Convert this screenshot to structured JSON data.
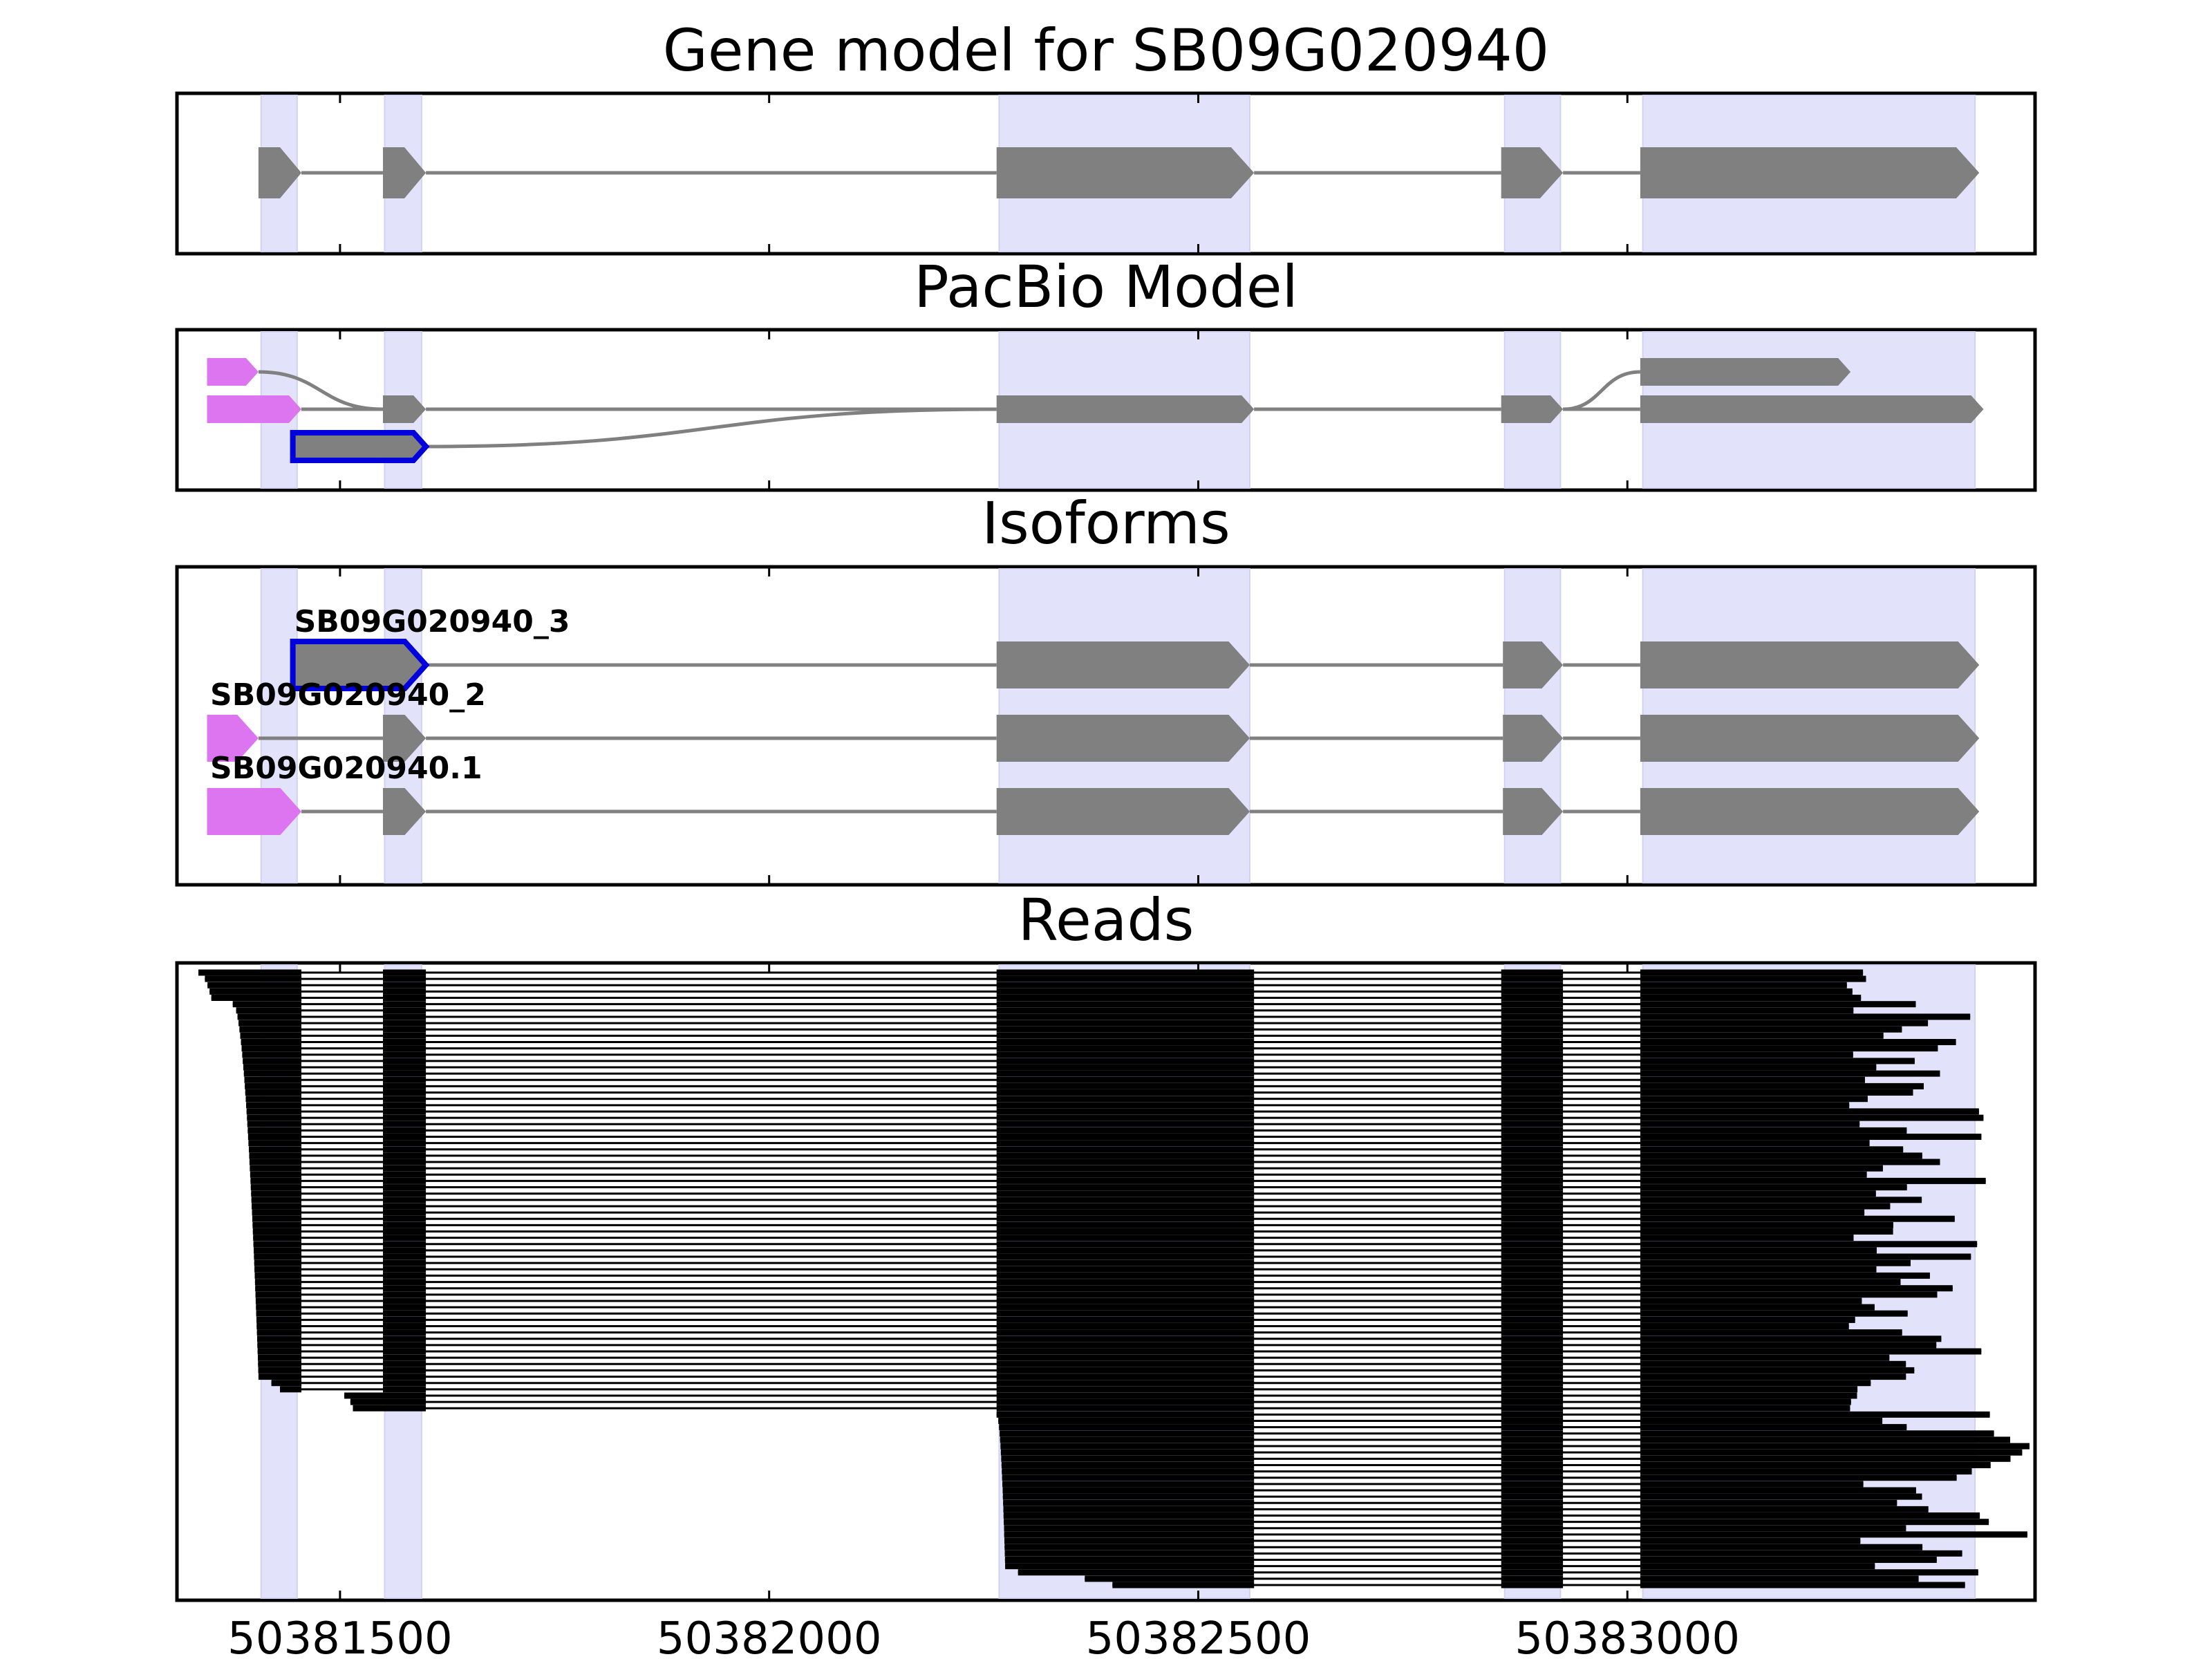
{
  "colors": {
    "exon": "#808080",
    "utr": "#dd75f0",
    "highlight_outline": "#0000dd",
    "exon_shading": "#e2e2fb",
    "read": "#000000"
  },
  "x_axis": {
    "domain": [
      50381310,
      50383475
    ],
    "ticks": [
      50381500,
      50382000,
      50382500,
      50383000
    ],
    "tick_labels": [
      "50381500",
      "50382000",
      "50382500",
      "50383000"
    ]
  },
  "shaded_exons": [
    [
      50381408,
      50381450
    ],
    [
      50381552,
      50381595
    ],
    [
      50382268,
      50382560
    ],
    [
      50382857,
      50382922
    ],
    [
      50383018,
      50383405
    ]
  ],
  "panels": [
    {
      "id": "gene-model",
      "title": "Gene model for SB09G020940",
      "tracks": [
        {
          "exons": [
            [
              50381405,
              50381455
            ],
            [
              50381550,
              50381600
            ],
            [
              50382265,
              50382565
            ],
            [
              50382853,
              50382925
            ],
            [
              50383015,
              50383410
            ]
          ]
        }
      ]
    },
    {
      "id": "pacbio-model",
      "title": "PacBio Model",
      "tracks": [
        {
          "utr": [
            [
              50381345,
              50381405
            ]
          ],
          "branch_to_track": 1,
          "branch_exon": 1
        },
        {
          "utr": [
            [
              50381345,
              50381455
            ]
          ],
          "exons": [
            [
              50381550,
              50381600
            ],
            [
              50382265,
              50382565
            ],
            [
              50382853,
              50382925
            ],
            [
              50383015,
              50383415
            ]
          ]
        },
        {
          "highlighted": true,
          "exons": [
            [
              50381445,
              50381600
            ]
          ],
          "branch_to_track": 1,
          "branch_exon": 2
        },
        {
          "exons": [
            [
              50383015,
              50383260
            ]
          ],
          "from_track": 1,
          "from_exon": 3
        }
      ]
    },
    {
      "id": "isoforms",
      "title": "Isoforms",
      "tracks": [
        {
          "label": "SB09G020940_3",
          "highlighted": true,
          "exons": [
            [
              50381445,
              50381600
            ],
            [
              50382265,
              50382560
            ],
            [
              50382855,
              50382925
            ],
            [
              50383015,
              50383410
            ]
          ]
        },
        {
          "label": "SB09G020940_2",
          "utr": [
            [
              50381345,
              50381405
            ]
          ],
          "exons": [
            [
              50381550,
              50381600
            ],
            [
              50382265,
              50382560
            ],
            [
              50382855,
              50382925
            ],
            [
              50383015,
              50383410
            ]
          ]
        },
        {
          "label": "SB09G020940.1",
          "utr": [
            [
              50381345,
              50381455
            ]
          ],
          "exons": [
            [
              50381550,
              50381600
            ],
            [
              50382265,
              50382560
            ],
            [
              50382855,
              50382925
            ],
            [
              50383015,
              50383410
            ]
          ]
        }
      ]
    },
    {
      "id": "reads",
      "title": "Reads",
      "read_groups": [
        {
          "count": 5,
          "first_start": [
            50381335,
            50381350
          ],
          "exon_ends": [
            50381455,
            50381600,
            50382565,
            50382925
          ],
          "end_range": [
            50383250,
            50383300
          ]
        },
        {
          "count": 60,
          "first_start": [
            50381375,
            50381405
          ],
          "exon_ends": [
            50381455,
            50381600,
            50382565,
            50382925
          ],
          "end_range": [
            50383250,
            50383420
          ]
        },
        {
          "count": 2,
          "first_start": [
            50381420,
            50381430
          ],
          "exon_ends": [
            50381455,
            50381600,
            50382565,
            50382925
          ],
          "end_range": [
            50383250,
            50383290
          ]
        },
        {
          "count": 3,
          "first_start": [
            50381505,
            50381515
          ],
          "exon_ends": [
            50381600,
            50382565,
            50382925
          ],
          "end_range": [
            50383250,
            50383290
          ]
        },
        {
          "count": 25,
          "first_start": [
            50382265,
            50382275
          ],
          "exon_ends": [
            50382565,
            50382925
          ],
          "end_range": [
            50383270,
            50383475
          ]
        },
        {
          "count": 3,
          "first_start": [
            50382290,
            50382400
          ],
          "exon_ends": [
            50382565,
            50382925
          ],
          "end_range": [
            50383280,
            50383410
          ]
        }
      ]
    }
  ]
}
